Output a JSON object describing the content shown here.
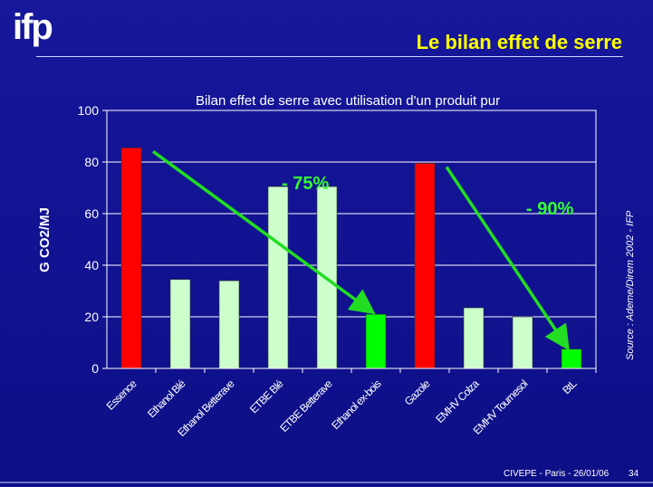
{
  "logo": {
    "text": "ifp"
  },
  "slide_title": "Le bilan effet de serre",
  "source": "Source : Ademe/Direm 2002 - IFP",
  "footer": {
    "text": "CIVEPE - Paris - 26/01/06",
    "page": "34"
  },
  "colors": {
    "red": "#ff0000",
    "light_green": "#ccffcc",
    "green": "#00ff00",
    "arrow": "#22dd22",
    "annotation": "#33ff33"
  },
  "chart_data": {
    "type": "bar",
    "title": "Bilan effet de serre avec utilisation d'un produit pur",
    "ylabel": "G CO2/MJ",
    "xlabel": "",
    "ylim": [
      0,
      100
    ],
    "yticks": [
      0,
      20,
      40,
      60,
      80,
      100
    ],
    "grid": true,
    "categories": [
      "Essence",
      "Ethanol Blé",
      "Ethanol Betterave",
      "ETBE Blé",
      "ETBE Betterave",
      "Ethanol ex-bois",
      "Gazole",
      "EMHV Colza",
      "EMHV Tournesol",
      "BtL"
    ],
    "values": [
      85.5,
      34.5,
      34,
      70.5,
      70.5,
      21,
      79.5,
      23.5,
      20,
      7.5
    ],
    "bar_colors": [
      "#ff0000",
      "#ccffcc",
      "#ccffcc",
      "#ccffcc",
      "#ccffcc",
      "#00ff00",
      "#ff0000",
      "#ccffcc",
      "#ccffcc",
      "#00ff00"
    ],
    "annotations": [
      {
        "text": "- 75%",
        "from_category": "Essence",
        "to_category": "Ethanol ex-bois"
      },
      {
        "text": "- 90%",
        "from_category": "Gazole",
        "to_category": "BtL"
      }
    ]
  }
}
